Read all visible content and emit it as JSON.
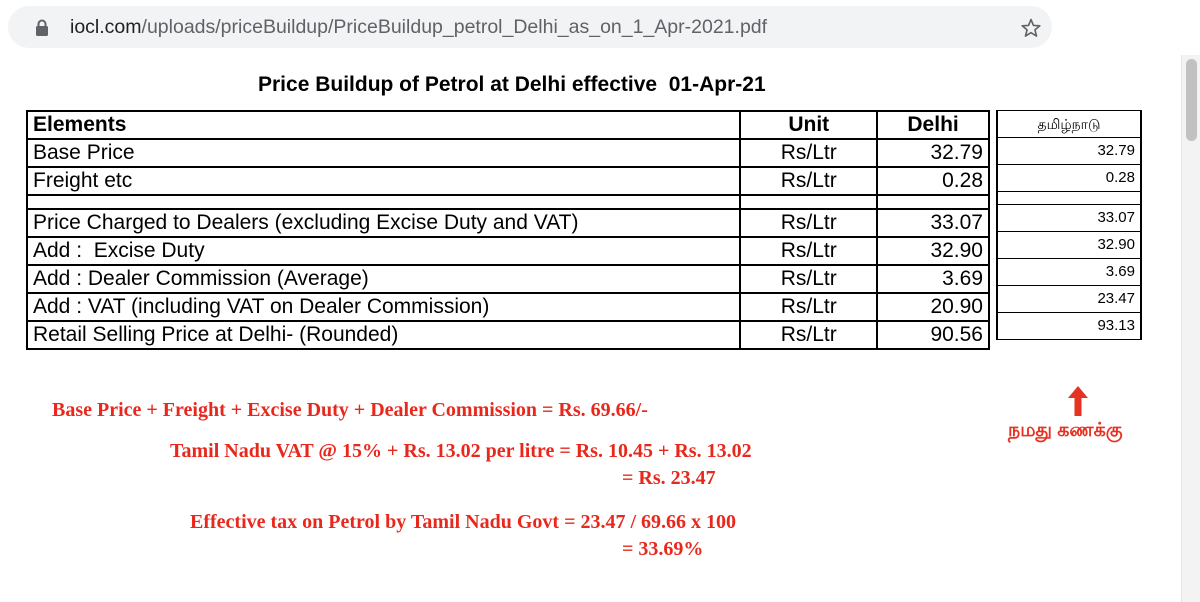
{
  "browser": {
    "url_host": "iocl.com",
    "url_path": "/uploads/priceBuildup/PriceBuildup_petrol_Delhi_as_on_1_Apr-2021.pdf",
    "icons": {
      "lock": "lock-icon",
      "star": "bookmark-star-icon"
    }
  },
  "document": {
    "title": "Price Buildup of Petrol at Delhi effective  01-Apr-21",
    "table": {
      "headers": {
        "elements": "Elements",
        "unit": "Unit",
        "delhi": "Delhi"
      },
      "rows": [
        {
          "element": "Base Price",
          "unit": "Rs/Ltr",
          "delhi": "32.79"
        },
        {
          "element": "Freight etc",
          "unit": "Rs/Ltr",
          "delhi": "0.28"
        },
        {
          "element": "Price Charged to Dealers (excluding Excise Duty and VAT)",
          "unit": "Rs/Ltr",
          "delhi": "33.07"
        },
        {
          "element": "Add :  Excise Duty",
          "unit": "Rs/Ltr",
          "delhi": "32.90"
        },
        {
          "element": "Add : Dealer Commission (Average)",
          "unit": "Rs/Ltr",
          "delhi": "3.69"
        },
        {
          "element": "Add : VAT (including VAT on Dealer Commission)",
          "unit": "Rs/Ltr",
          "delhi": "20.90"
        },
        {
          "element": "Retail Selling Price at Delhi- (Rounded)",
          "unit": "Rs/Ltr",
          "delhi": "90.56"
        }
      ]
    },
    "tamilnadu": {
      "header": "தமிழ்நாடு",
      "values": [
        "32.79",
        "0.28",
        "33.07",
        "32.90",
        "3.69",
        "23.47",
        "93.13"
      ],
      "annotation": "நமது கணக்கு"
    },
    "notes": {
      "line1": "Base Price + Freight + Excise Duty + Dealer Commission = Rs. 69.66/-",
      "line2": "Tamil Nadu VAT @ 15% + Rs. 13.02 per litre = Rs. 10.45 + Rs. 13.02",
      "line3": "= Rs. 23.47",
      "line4": "Effective tax on Petrol by Tamil Nadu Govt = 23.47 / 69.66 x 100",
      "line5": "= 33.69%"
    },
    "colors": {
      "annotation_red": "#e8281c"
    }
  }
}
